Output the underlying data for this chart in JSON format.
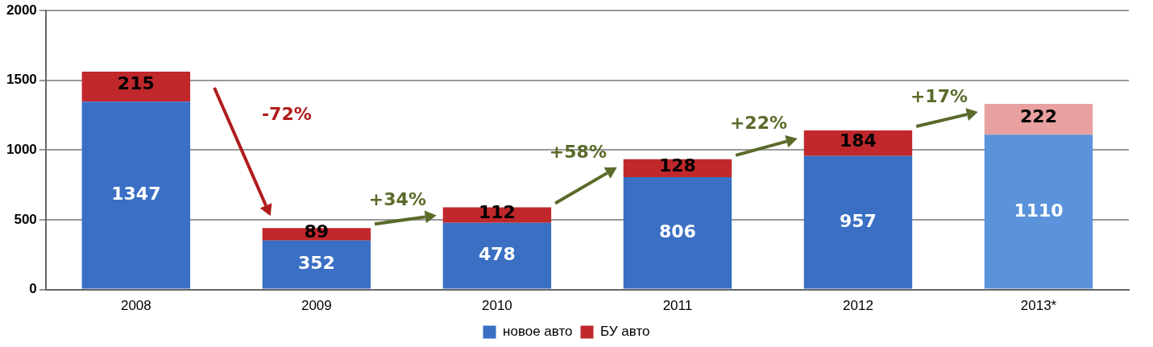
{
  "chart_data": {
    "type": "bar",
    "stacked": true,
    "categories": [
      "2008",
      "2009",
      "2010",
      "2011",
      "2012",
      "2013*"
    ],
    "series": [
      {
        "name": "новое авто",
        "color": "#3a6fc4",
        "colors": [
          "#3a6fc4",
          "#3a6fc4",
          "#3a6fc4",
          "#3a6fc4",
          "#3a6fc4",
          "#5b93db"
        ],
        "values": [
          1347,
          352,
          478,
          806,
          957,
          1110
        ]
      },
      {
        "name": "БУ авто",
        "color": "#c0282c",
        "colors": [
          "#c0282c",
          "#c0282c",
          "#c0282c",
          "#c0282c",
          "#c0282c",
          "#e8a0a0"
        ],
        "values": [
          215,
          89,
          112,
          128,
          184,
          222
        ]
      }
    ],
    "ylim": [
      0,
      2000
    ],
    "yticks": [
      0,
      500,
      1000,
      1500,
      2000
    ],
    "grid": "y",
    "legend": "bottom",
    "data_labels": true,
    "annotations": [
      "-72%",
      "+34%",
      "+58%",
      "+22%",
      "+17%"
    ]
  }
}
